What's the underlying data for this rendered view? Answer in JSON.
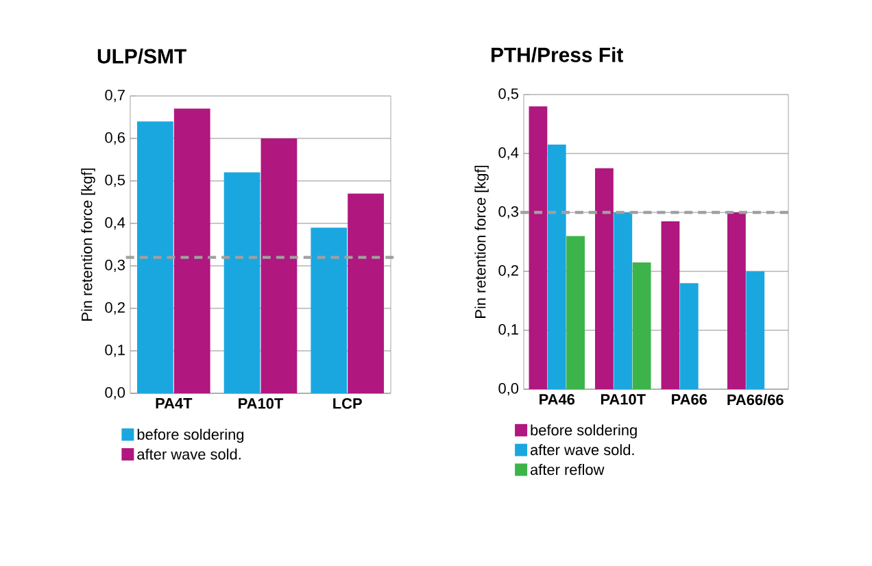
{
  "chart_data": [
    {
      "type": "bar",
      "title": "ULP/SMT",
      "ylabel": "Pin retention force [kgf]",
      "categories": [
        "PA4T",
        "PA10T",
        "LCP"
      ],
      "series": [
        {
          "name": "before soldering",
          "color": "#1aa7e0",
          "values": [
            0.64,
            0.52,
            0.39
          ]
        },
        {
          "name": "after wave sold.",
          "color": "#b0177f",
          "values": [
            0.67,
            0.6,
            0.47
          ]
        }
      ],
      "ylim": [
        0,
        0.7
      ],
      "yticks": [
        {
          "value": 0,
          "label": "0,0"
        },
        {
          "value": 0.1,
          "label": "0,1"
        },
        {
          "value": 0.2,
          "label": "0,2"
        },
        {
          "value": 0.3,
          "label": "0,3"
        },
        {
          "value": 0.4,
          "label": "0,4"
        },
        {
          "value": 0.5,
          "label": "0,5"
        },
        {
          "value": 0.6,
          "label": "0,6"
        },
        {
          "value": 0.7,
          "label": "0,7"
        }
      ],
      "ref_lines": [
        {
          "axis": "y",
          "value": 0.32,
          "color": "#a0a0a0",
          "line_style": "dashed"
        }
      ],
      "grid": "y",
      "legend": "bottom"
    },
    {
      "type": "bar",
      "title": "PTH/Press Fit",
      "ylabel": "Pin retention force [kgf]",
      "categories": [
        "PA46",
        "PA10T",
        "PA66",
        "PA66/66"
      ],
      "series": [
        {
          "name": "before soldering",
          "color": "#b0177f",
          "values": [
            0.48,
            0.375,
            0.285,
            0.3
          ]
        },
        {
          "name": "after wave sold.",
          "color": "#1aa7e0",
          "values": [
            0.415,
            0.3,
            0.18,
            0.2
          ]
        },
        {
          "name": "after reflow",
          "color": "#3cb44a",
          "values": [
            0.26,
            0.215,
            null,
            null
          ]
        }
      ],
      "ylim": [
        0,
        0.5
      ],
      "yticks": [
        {
          "value": 0,
          "label": "0,0"
        },
        {
          "value": 0.1,
          "label": "0,1"
        },
        {
          "value": 0.2,
          "label": "0,2"
        },
        {
          "value": 0.3,
          "label": "0,3"
        },
        {
          "value": 0.4,
          "label": "0,4"
        },
        {
          "value": 0.5,
          "label": "0,5"
        }
      ],
      "ref_lines": [
        {
          "axis": "y",
          "value": 0.3,
          "color": "#a0a0a0",
          "line_style": "dashed"
        }
      ],
      "grid": "y",
      "legend": "bottom"
    }
  ]
}
